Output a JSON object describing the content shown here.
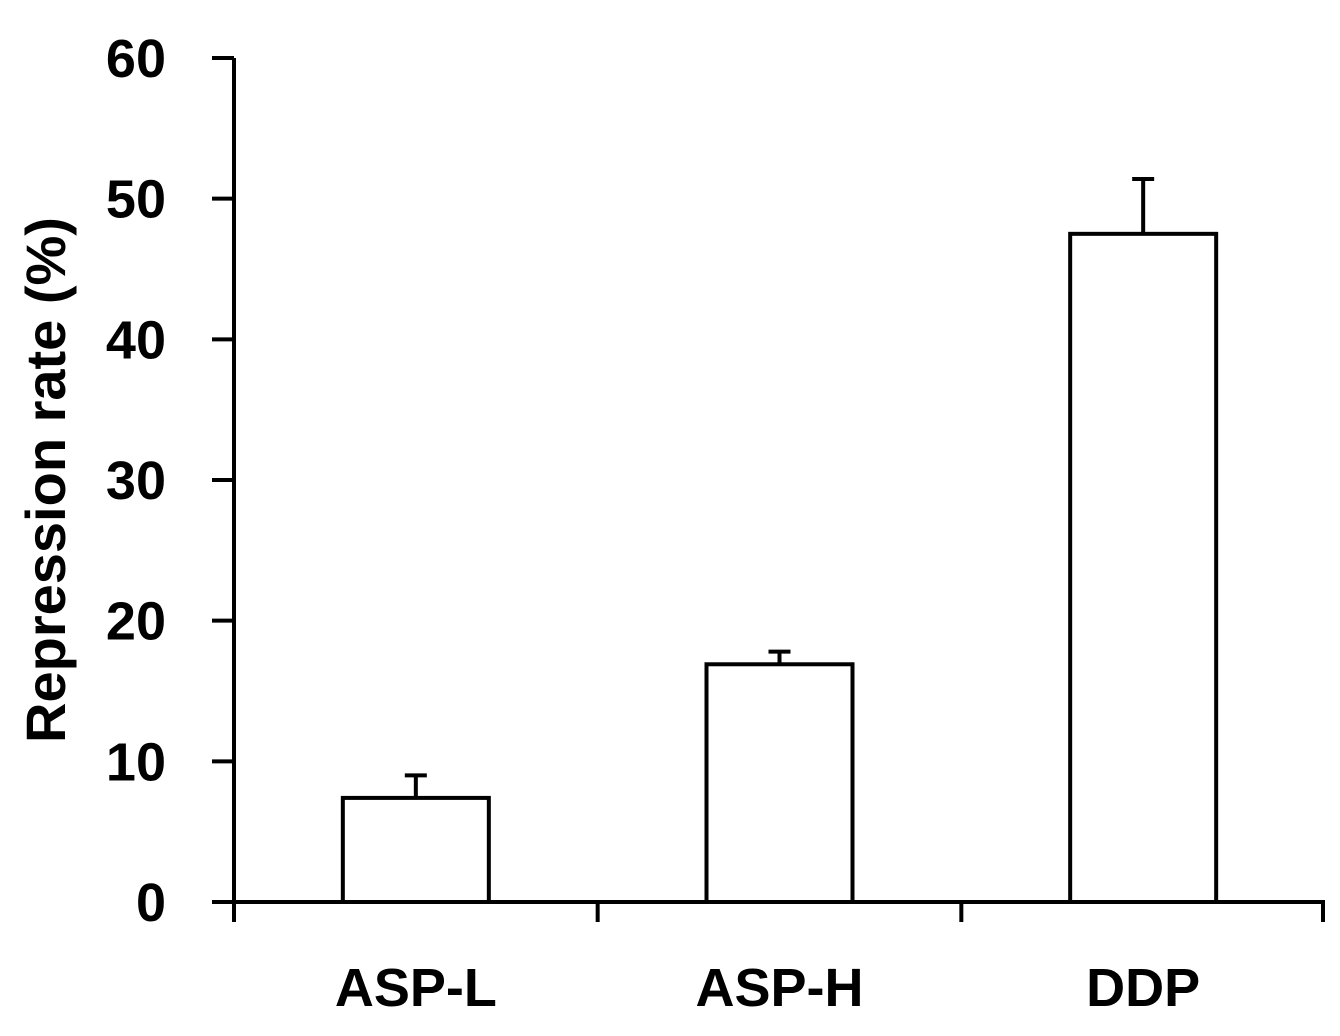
{
  "chart_data": {
    "type": "bar",
    "title": "",
    "xlabel": "",
    "ylabel": "Repression rate (%)",
    "ylim": [
      0,
      60
    ],
    "yticks": [
      0,
      10,
      20,
      30,
      40,
      50,
      60
    ],
    "categories": [
      "ASP-L",
      "ASP-H",
      "DDP"
    ],
    "values": [
      7.4,
      16.9,
      47.5
    ],
    "error_plus": [
      1.6,
      0.9,
      3.9
    ],
    "grid": false,
    "legend": "none",
    "colors": {
      "bar_fill": "#ffffff",
      "bar_stroke": "#000000",
      "axis": "#000000"
    }
  }
}
